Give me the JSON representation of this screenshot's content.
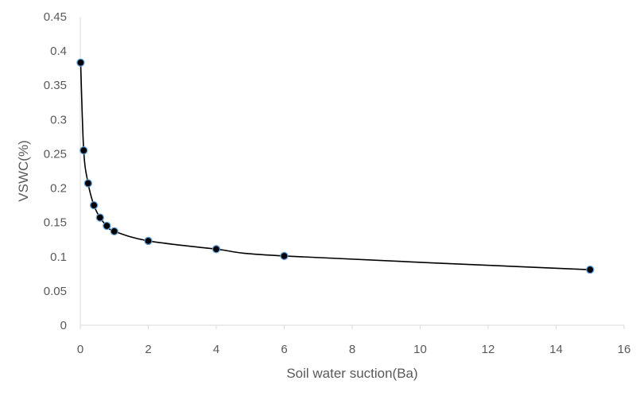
{
  "chart_data": {
    "type": "scatter",
    "title": "",
    "xlabel": "Soil water suction(Ba)",
    "ylabel": "VSWC(%)",
    "xlim": [
      0,
      16
    ],
    "ylim": [
      0,
      0.45
    ],
    "x_ticks": [
      "0",
      "2",
      "4",
      "6",
      "8",
      "10",
      "12",
      "14",
      "16"
    ],
    "y_ticks": [
      "0",
      "0.05",
      "0.1",
      "0.15",
      "0.2",
      "0.25",
      "0.3",
      "0.35",
      "0.4",
      "0.45"
    ],
    "grid": false,
    "legend": "none",
    "series": [
      {
        "points": [
          {
            "x": 0.01,
            "y": 0.383
          },
          {
            "x": 0.1,
            "y": 0.255
          },
          {
            "x": 0.23,
            "y": 0.207
          },
          {
            "x": 0.4,
            "y": 0.175
          },
          {
            "x": 0.58,
            "y": 0.157
          },
          {
            "x": 0.78,
            "y": 0.145
          },
          {
            "x": 1.0,
            "y": 0.137
          },
          {
            "x": 2.0,
            "y": 0.123
          },
          {
            "x": 4.0,
            "y": 0.111
          },
          {
            "x": 6.0,
            "y": 0.101
          },
          {
            "x": 15.0,
            "y": 0.081
          }
        ],
        "line_color": "#000000",
        "marker_fill": "#000000",
        "marker_edge": "#5b9bd5"
      }
    ]
  }
}
